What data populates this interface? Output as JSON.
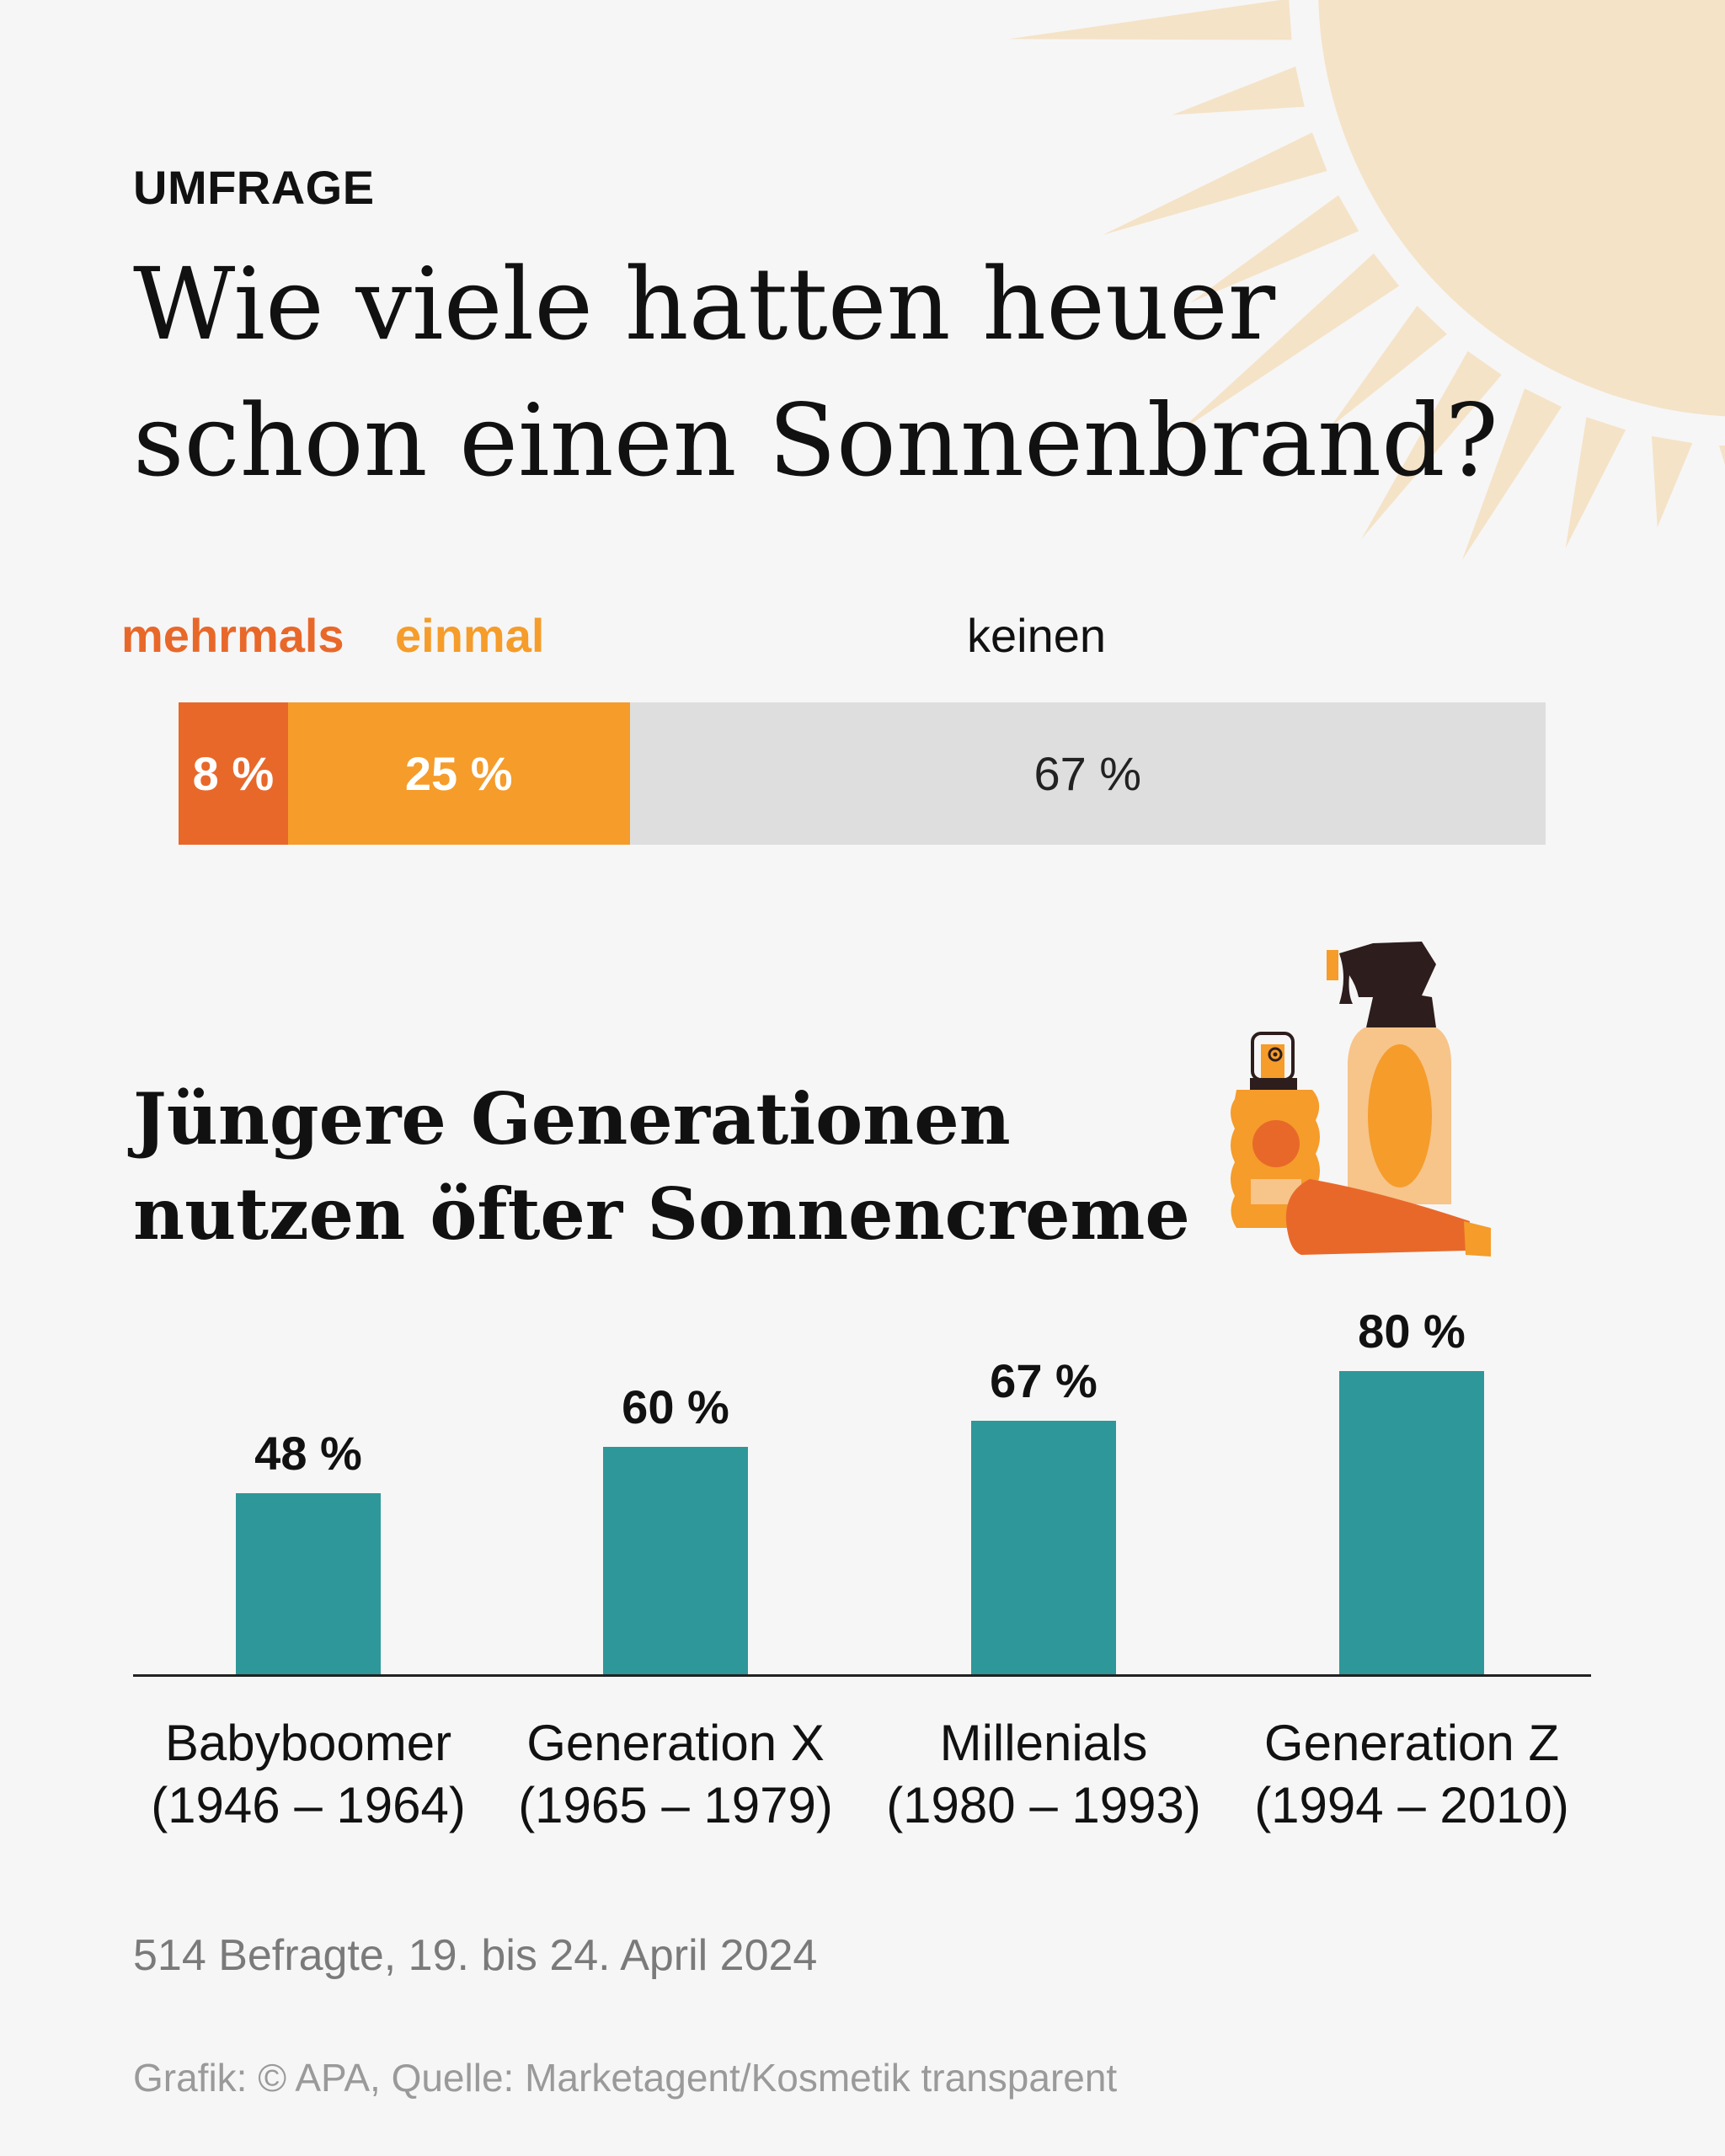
{
  "kicker": "UMFRAGE",
  "title": [
    "Wie viele hatten heuer",
    "schon einen Sonnenbrand?"
  ],
  "colors": {
    "background": "#f6f6f6",
    "mehrmals": "#e8682a",
    "einmal": "#f59c2a",
    "keinen": "#dedede",
    "bars": "#2e9799",
    "sun": "#f5e3c8"
  },
  "stacked": {
    "segments": [
      {
        "label": "mehrmals",
        "value": 8,
        "value_label": "8 %"
      },
      {
        "label": "einmal",
        "value": 25,
        "value_label": "25 %"
      },
      {
        "label": "keinen",
        "value": 67,
        "value_label": "67 %"
      }
    ]
  },
  "subtitle": [
    "Jüngere Generationen",
    "nutzen öfter Sonnencreme"
  ],
  "chart_data": [
    {
      "type": "bar",
      "orientation": "horizontal-stacked",
      "title": "Wie viele hatten heuer schon einen Sonnenbrand?",
      "categories": [
        "mehrmals",
        "einmal",
        "keinen"
      ],
      "values": [
        8,
        25,
        67
      ],
      "unit": "%"
    },
    {
      "type": "bar",
      "title": "Jüngere Generationen nutzen öfter Sonnencreme",
      "categories": [
        {
          "name": "Babyboomer",
          "years": "(1946 – 1964)"
        },
        {
          "name": "Generation X",
          "years": "(1965 – 1979)"
        },
        {
          "name": "Millenials",
          "years": "(1980 – 1993)"
        },
        {
          "name": "Generation Z",
          "years": "(1994 – 2010)"
        }
      ],
      "values": [
        48,
        60,
        67,
        80
      ],
      "value_labels": [
        "48 %",
        "60 %",
        "67 %",
        "80 %"
      ],
      "unit": "%",
      "ylim": [
        0,
        100
      ],
      "grid": false
    }
  ],
  "footnote": "514 Befragte, 19. bis 24. April 2024",
  "source": "Grafik: © APA, Quelle: Marketagent/Kosmetik transparent"
}
